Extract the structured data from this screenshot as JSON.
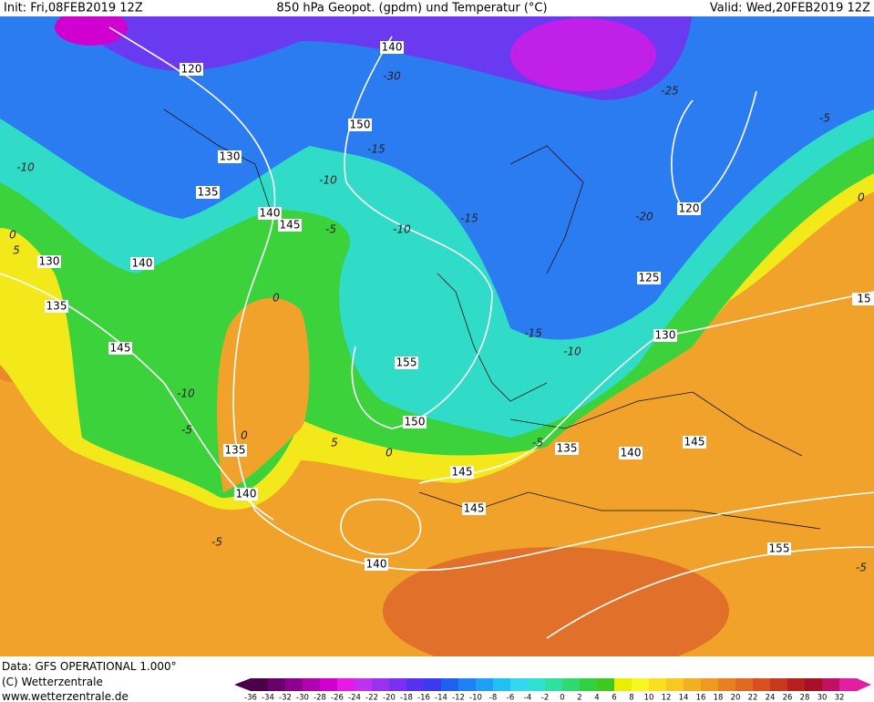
{
  "header": {
    "init": "Init: Fri,08FEB2019 12Z",
    "title": "850 hPa Geopot. (gpdm) und Temperatur (°C)",
    "valid": "Valid: Wed,20FEB2019 12Z"
  },
  "map": {
    "geopotential_labels": [
      120,
      140,
      150,
      130,
      135,
      140,
      145,
      130,
      140,
      135,
      120,
      125,
      130,
      145,
      155,
      150,
      135,
      135,
      140,
      145,
      145,
      140,
      145,
      140,
      155,
      15
    ],
    "temperature_labels": [
      -30,
      -25,
      -5,
      -10,
      -15,
      -10,
      -15,
      -20,
      0,
      -5,
      -10,
      0,
      5,
      0,
      -15,
      -10,
      -10,
      -5,
      0,
      5,
      0,
      -5,
      -5,
      -5
    ]
  },
  "footer": {
    "data_source": "Data: GFS OPERATIONAL 1.000°",
    "copyright": "(C) Wetterzentrale",
    "website": "www.wetterzentrale.de"
  },
  "legend": {
    "ticks": [
      -36,
      -34,
      -32,
      -30,
      -28,
      -26,
      -24,
      -22,
      -20,
      -18,
      -16,
      -14,
      -12,
      -10,
      -8,
      -6,
      -4,
      -2,
      0,
      2,
      4,
      6,
      8,
      10,
      12,
      14,
      16,
      18,
      20,
      22,
      24,
      26,
      28,
      30,
      32
    ]
  }
}
